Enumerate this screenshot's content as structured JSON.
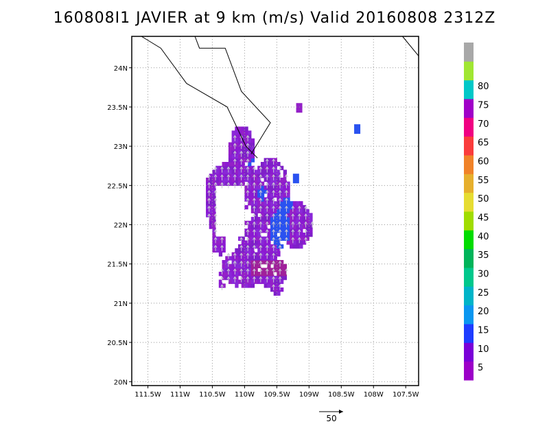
{
  "title": "160808I1 JAVIER at 9 km (m/s) Valid 20160808 2312Z",
  "map": {
    "lon_range": [
      -111.75,
      -107.3
    ],
    "lat_range": [
      19.95,
      24.4
    ],
    "x_ticks": [
      {
        "value": -111.5,
        "label": "111.5W"
      },
      {
        "value": -111.0,
        "label": "111W"
      },
      {
        "value": -110.5,
        "label": "110.5W"
      },
      {
        "value": -110.0,
        "label": "110W"
      },
      {
        "value": -109.5,
        "label": "109.5W"
      },
      {
        "value": -109.0,
        "label": "109W"
      },
      {
        "value": -108.5,
        "label": "108.5W"
      },
      {
        "value": -108.0,
        "label": "108W"
      },
      {
        "value": -107.5,
        "label": "107.5W"
      }
    ],
    "y_ticks": [
      {
        "value": 20.0,
        "label": "20N"
      },
      {
        "value": 20.5,
        "label": "20.5N"
      },
      {
        "value": 21.0,
        "label": "21N"
      },
      {
        "value": 21.5,
        "label": "21.5N"
      },
      {
        "value": 22.0,
        "label": "22N"
      },
      {
        "value": 22.5,
        "label": "22.5N"
      },
      {
        "value": 23.0,
        "label": "23N"
      },
      {
        "value": 23.5,
        "label": "23.5N"
      },
      {
        "value": 24.0,
        "label": "24N"
      }
    ],
    "gridlines": true,
    "coastline_west": [
      [
        -111.6,
        24.4
      ],
      [
        -111.3,
        24.25
      ],
      [
        -110.9,
        23.8
      ],
      [
        -110.27,
        23.5
      ],
      [
        -109.98,
        23.0
      ],
      [
        -109.8,
        22.85
      ]
    ],
    "coastline_east": [
      [
        -110.77,
        24.4
      ],
      [
        -110.7,
        24.25
      ],
      [
        -110.3,
        24.25
      ],
      [
        -110.05,
        23.7
      ],
      [
        -109.6,
        23.3
      ],
      [
        -109.9,
        22.9
      ]
    ],
    "coastline_mainland": [
      [
        -107.55,
        24.4
      ],
      [
        -107.3,
        24.15
      ]
    ]
  },
  "scale_arrow": {
    "label": "50",
    "value": 50
  },
  "colorbar": {
    "labels": [
      "5",
      "10",
      "15",
      "20",
      "25",
      "30",
      "35",
      "40",
      "45",
      "50",
      "55",
      "60",
      "65",
      "70",
      "75",
      "80"
    ],
    "colors": [
      "#9c00c8",
      "#7a00d8",
      "#1e3cff",
      "#0a96f0",
      "#00b4c8",
      "#00c88c",
      "#00b45a",
      "#00dc00",
      "#a0dc00",
      "#e6dc32",
      "#e6af2d",
      "#f08228",
      "#fa3c3c",
      "#f00082",
      "#a000c8",
      "#00c8c8",
      "#a0e632",
      "#a8a8a8"
    ]
  }
}
